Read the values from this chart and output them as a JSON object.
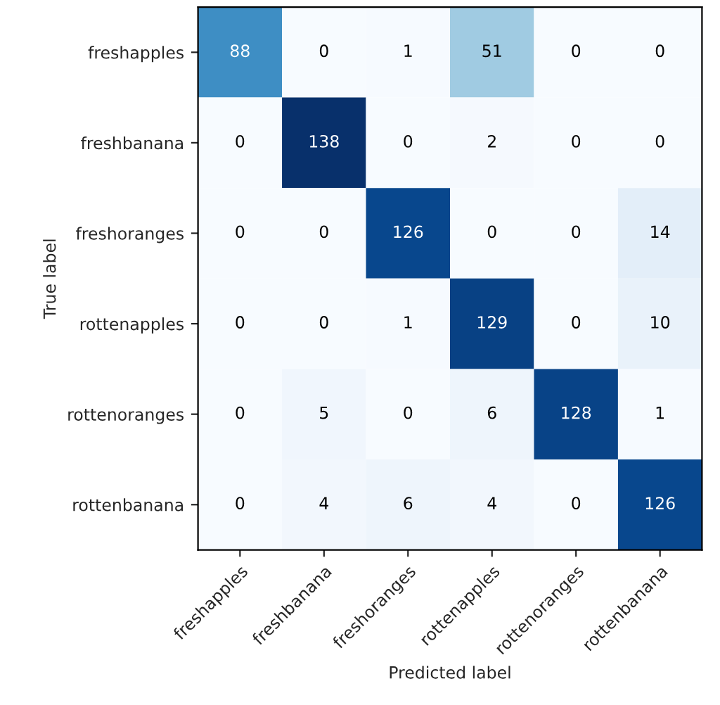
{
  "chart_data": {
    "type": "heatmap",
    "xlabel": "Predicted label",
    "ylabel": "True label",
    "categories": [
      "freshapples",
      "freshbanana",
      "freshoranges",
      "rottenapples",
      "rottenoranges",
      "rottenbanana"
    ],
    "y_categories": [
      "freshapples",
      "freshbanana",
      "freshoranges",
      "rottenapples",
      "rottenoranges",
      "rottenbanana"
    ],
    "cells": [
      [
        88,
        0,
        1,
        51,
        0,
        0
      ],
      [
        0,
        138,
        0,
        2,
        0,
        0
      ],
      [
        0,
        0,
        126,
        0,
        0,
        14
      ],
      [
        0,
        0,
        1,
        129,
        0,
        10
      ],
      [
        0,
        5,
        0,
        6,
        128,
        1
      ],
      [
        0,
        4,
        6,
        4,
        0,
        126
      ]
    ],
    "data_labels": true
  }
}
